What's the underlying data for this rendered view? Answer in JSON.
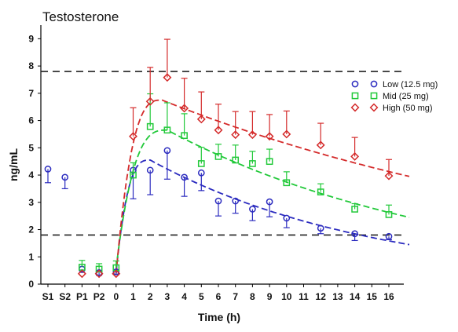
{
  "chart_data": {
    "type": "scatter",
    "title": "Testosterone",
    "xlabel": "Time (h)",
    "ylabel": "ng/mL",
    "ylim": [
      0,
      9.5
    ],
    "y_ticks": [
      0,
      1,
      2,
      3,
      4,
      5,
      6,
      7,
      8,
      9
    ],
    "x_categories": [
      "S1",
      "S2",
      "P1",
      "P2",
      "0",
      "1",
      "2",
      "3",
      "4",
      "5",
      "6",
      "7",
      "8",
      "9",
      "10",
      "11",
      "12",
      "13",
      "14",
      "15",
      "16"
    ],
    "reference_lines": [
      7.8,
      1.8
    ],
    "legend_position": "right",
    "series": [
      {
        "name": "Low (12.5 mg)",
        "color": "#2b2bbf",
        "marker": "circle",
        "error_direction": "down",
        "points": [
          {
            "x": "S1",
            "y": 4.22,
            "err": 0.5
          },
          {
            "x": "S2",
            "y": 3.92,
            "err": 0.42
          },
          {
            "x": "P1",
            "y": 0.55,
            "err": 0.12
          },
          {
            "x": "P2",
            "y": 0.42,
            "err": 0.1
          },
          {
            "x": "0",
            "y": 0.45,
            "err": 0.1
          },
          {
            "x": "1",
            "y": 4.18,
            "err": 1.05
          },
          {
            "x": "2",
            "y": 4.18,
            "err": 0.9
          },
          {
            "x": "3",
            "y": 4.9,
            "err": 1.05
          },
          {
            "x": "4",
            "y": 3.92,
            "err": 0.7
          },
          {
            "x": "5",
            "y": 4.08,
            "err": 0.65
          },
          {
            "x": "6",
            "y": 3.05,
            "err": 0.55
          },
          {
            "x": "7",
            "y": 3.05,
            "err": 0.45
          },
          {
            "x": "8",
            "y": 2.75,
            "err": 0.42
          },
          {
            "x": "9",
            "y": 3.02,
            "err": 0.55
          },
          {
            "x": "10",
            "y": 2.42,
            "err": 0.35
          },
          {
            "x": "12",
            "y": 2.05,
            "err": 0.2
          },
          {
            "x": "14",
            "y": 1.85,
            "err": 0.25
          },
          {
            "x": "16",
            "y": 1.75,
            "err": 0.12
          }
        ],
        "fit": {
          "peak_x": "2",
          "peak_y": 4.55,
          "end_y": 1.45
        }
      },
      {
        "name": "Mid (25 mg)",
        "color": "#22c93a",
        "marker": "square",
        "error_direction": "up",
        "points": [
          {
            "x": "P1",
            "y": 0.62,
            "err": 0.25
          },
          {
            "x": "P2",
            "y": 0.55,
            "err": 0.2
          },
          {
            "x": "0",
            "y": 0.6,
            "err": 0.25
          },
          {
            "x": "1",
            "y": 4.0,
            "err": 0.45
          },
          {
            "x": "2",
            "y": 5.78,
            "err": 1.2
          },
          {
            "x": "3",
            "y": 5.65,
            "err": 1.0
          },
          {
            "x": "4",
            "y": 5.45,
            "err": 0.8
          },
          {
            "x": "5",
            "y": 4.42,
            "err": 0.6
          },
          {
            "x": "6",
            "y": 4.68,
            "err": 0.45
          },
          {
            "x": "7",
            "y": 4.55,
            "err": 0.55
          },
          {
            "x": "8",
            "y": 4.42,
            "err": 0.45
          },
          {
            "x": "9",
            "y": 4.5,
            "err": 0.45
          },
          {
            "x": "10",
            "y": 3.72,
            "err": 0.4
          },
          {
            "x": "12",
            "y": 3.38,
            "err": 0.3
          },
          {
            "x": "14",
            "y": 2.75,
            "err": 0.2
          },
          {
            "x": "16",
            "y": 2.55,
            "err": 0.35
          }
        ],
        "fit": {
          "peak_x": "3",
          "peak_y": 5.65,
          "end_y": 2.45
        }
      },
      {
        "name": "High (50 mg)",
        "color": "#d42a2a",
        "marker": "diamond",
        "error_direction": "up",
        "points": [
          {
            "x": "P1",
            "y": 0.38,
            "err": 0.0
          },
          {
            "x": "P2",
            "y": 0.38,
            "err": 0.0
          },
          {
            "x": "0",
            "y": 0.38,
            "err": 0.0
          },
          {
            "x": "1",
            "y": 5.42,
            "err": 1.05
          },
          {
            "x": "2",
            "y": 6.7,
            "err": 1.25
          },
          {
            "x": "3",
            "y": 7.58,
            "err": 1.4
          },
          {
            "x": "4",
            "y": 6.45,
            "err": 1.1
          },
          {
            "x": "5",
            "y": 6.05,
            "err": 1.0
          },
          {
            "x": "6",
            "y": 5.65,
            "err": 0.95
          },
          {
            "x": "7",
            "y": 5.48,
            "err": 0.85
          },
          {
            "x": "8",
            "y": 5.48,
            "err": 0.85
          },
          {
            "x": "9",
            "y": 5.42,
            "err": 0.8
          },
          {
            "x": "10",
            "y": 5.5,
            "err": 0.85
          },
          {
            "x": "12",
            "y": 5.1,
            "err": 0.8
          },
          {
            "x": "14",
            "y": 4.68,
            "err": 0.7
          },
          {
            "x": "16",
            "y": 3.97,
            "err": 0.6
          }
        ],
        "fit": {
          "peak_x": "2.7",
          "peak_y": 6.75,
          "end_y": 3.95
        }
      }
    ]
  }
}
